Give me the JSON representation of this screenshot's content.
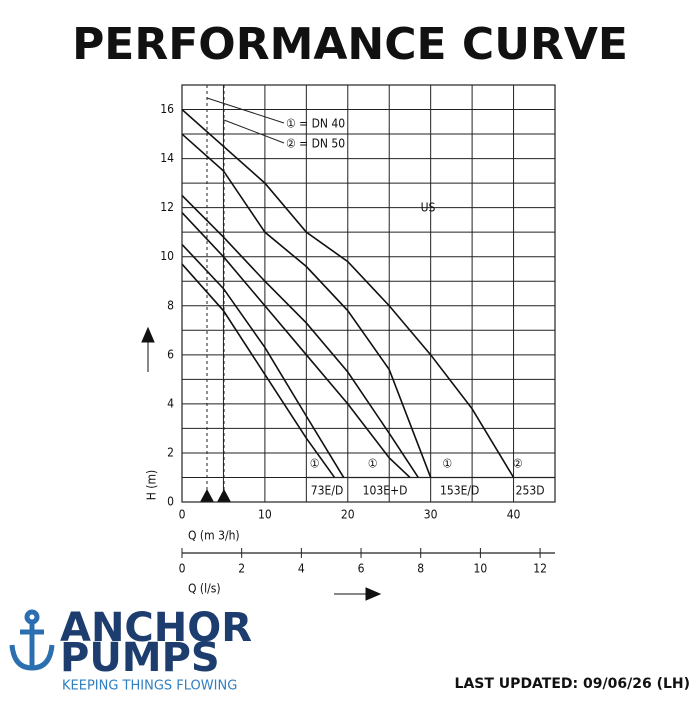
{
  "header": {
    "title": "PERFORMANCE CURVE"
  },
  "chart_data": {
    "type": "line",
    "ylabel": "H (m)",
    "xlabel": "Q (m 3/h)",
    "x2label": "Q (l/s)",
    "xlim": [
      0,
      45
    ],
    "xticks": [
      0,
      10,
      20,
      30,
      40
    ],
    "xminor": [
      5,
      15,
      25,
      35,
      45
    ],
    "ylim": [
      0,
      17
    ],
    "yticks": [
      0,
      2,
      4,
      6,
      8,
      10,
      12,
      14,
      16
    ],
    "yminor": [
      1,
      3,
      5,
      7,
      9,
      11,
      13,
      15,
      17
    ],
    "x2lim": [
      0,
      12.5
    ],
    "x2ticks": [
      0,
      2,
      4,
      6,
      8,
      10,
      12
    ],
    "grid": true,
    "legend": [
      "① = DN 40",
      "② = DN 50"
    ],
    "region": "US",
    "models": [
      {
        "tag": "①",
        "name": "73E/D"
      },
      {
        "tag": "①",
        "name": "103E+D"
      },
      {
        "tag": "①",
        "name": "153E/D"
      },
      {
        "tag": "②",
        "name": "253D"
      }
    ],
    "series": [
      {
        "name": null,
        "color": "#111111",
        "x": [
          0,
          5,
          10,
          15,
          18.4
        ],
        "values": [
          9.7,
          7.8,
          5.2,
          2.6,
          1
        ]
      },
      {
        "name": null,
        "color": "#111111",
        "x": [
          0,
          5,
          10,
          15,
          19.5
        ],
        "values": [
          10.5,
          8.7,
          6.3,
          3.5,
          1
        ]
      },
      {
        "name": null,
        "color": "#111111",
        "x": [
          0,
          5,
          10,
          15,
          20,
          25,
          27.5
        ],
        "values": [
          11.8,
          10,
          8,
          6,
          4,
          1.8,
          1
        ]
      },
      {
        "name": null,
        "color": "#111111",
        "x": [
          0,
          5,
          10,
          15,
          20,
          25,
          28.5
        ],
        "values": [
          12.5,
          10.8,
          9,
          7.3,
          5.3,
          2.8,
          1
        ]
      },
      {
        "name": null,
        "color": "#111111",
        "x": [
          0,
          5,
          10,
          15,
          20,
          25,
          30
        ],
        "values": [
          15,
          13.5,
          11,
          9.6,
          7.8,
          5.4,
          1
        ]
      },
      {
        "name": null,
        "color": "#111111",
        "x": [
          0,
          10,
          15,
          20,
          25,
          30,
          35,
          40
        ],
        "values": [
          16,
          13,
          11,
          9.8,
          8,
          6,
          3.8,
          1
        ]
      }
    ]
  },
  "logo": {
    "line1": "ANCHOR",
    "line2": "PUMPS",
    "tagline": "KEEPING THINGS FLOWING"
  },
  "footer": {
    "updated": "LAST UPDATED: 09/06/26 (LH)"
  }
}
